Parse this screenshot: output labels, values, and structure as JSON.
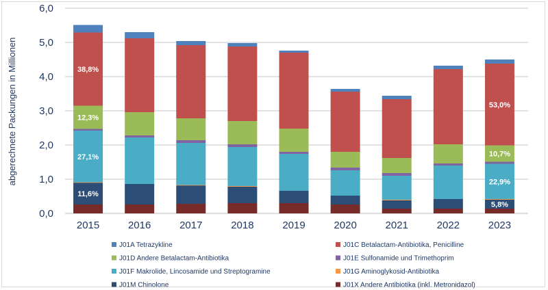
{
  "chart_data": {
    "type": "bar",
    "stacked": true,
    "title": "",
    "xlabel": "",
    "ylabel": "abgerechnete Packungen in Millionen",
    "ylim": [
      0,
      6
    ],
    "yticks": [
      "0,0",
      "1,0",
      "2,0",
      "3,0",
      "4,0",
      "5,0",
      "6,0"
    ],
    "grid": true,
    "legend_position": "bottom",
    "categories": [
      "2015",
      "2016",
      "2017",
      "2018",
      "2019",
      "2020",
      "2021",
      "2022",
      "2023"
    ],
    "series": [
      {
        "name": "J01X Andere Antibiotika (inkl. Metronidazol)",
        "color": "#772C2A",
        "values": [
          0.26,
          0.26,
          0.28,
          0.3,
          0.3,
          0.26,
          0.14,
          0.14,
          0.14
        ]
      },
      {
        "name": "J01M Chinolone",
        "color": "#2C4D75",
        "values": [
          0.64,
          0.6,
          0.54,
          0.48,
          0.36,
          0.26,
          0.24,
          0.28,
          0.26
        ]
      },
      {
        "name": "J01G Aminoglykosid-Antibiotika",
        "color": "#F79646",
        "values": [
          0.01,
          0.0,
          0.01,
          0.02,
          0.0,
          0.0,
          0.02,
          0.0,
          0.02
        ]
      },
      {
        "name": "J01F Makrolide, Lincosamide und Streptogramine",
        "color": "#4BACC6",
        "values": [
          1.51,
          1.36,
          1.23,
          1.14,
          1.08,
          0.74,
          0.7,
          0.98,
          1.03
        ]
      },
      {
        "name": "J01E Sulfonamide und Trimethoprim",
        "color": "#8064A2",
        "values": [
          0.05,
          0.06,
          0.08,
          0.08,
          0.06,
          0.08,
          0.08,
          0.06,
          0.06
        ]
      },
      {
        "name": "J01D Andere Betalactam-Antibiotika",
        "color": "#9BBB59",
        "values": [
          0.68,
          0.68,
          0.64,
          0.68,
          0.68,
          0.46,
          0.44,
          0.56,
          0.48
        ]
      },
      {
        "name": "J01C Betalactam-Antibiotika, Penicilline",
        "color": "#C0504D",
        "values": [
          2.14,
          2.16,
          2.14,
          2.18,
          2.22,
          1.76,
          1.72,
          2.2,
          2.39
        ]
      },
      {
        "name": "J01A Tetrazykline",
        "color": "#4F81BD",
        "values": [
          0.22,
          0.18,
          0.12,
          0.1,
          0.06,
          0.08,
          0.1,
          0.1,
          0.12
        ]
      }
    ],
    "data_labels": [
      {
        "category": "2015",
        "series": "J01C Betalactam-Antibiotika, Penicilline",
        "text": "38,8%"
      },
      {
        "category": "2015",
        "series": "J01D Andere Betalactam-Antibiotika",
        "text": "12,3%"
      },
      {
        "category": "2015",
        "series": "J01F Makrolide, Lincosamide und Streptogramine",
        "text": "27,1%"
      },
      {
        "category": "2015",
        "series": "J01M Chinolone",
        "text": "11,6%"
      },
      {
        "category": "2023",
        "series": "J01C Betalactam-Antibiotika, Penicilline",
        "text": "53,0%"
      },
      {
        "category": "2023",
        "series": "J01D Andere Betalactam-Antibiotika",
        "text": "10,7%"
      },
      {
        "category": "2023",
        "series": "J01F Makrolide, Lincosamide und Streptogramine",
        "text": "22,9%"
      },
      {
        "category": "2023",
        "series": "J01M Chinolone",
        "text": "5,8%"
      }
    ],
    "legend": [
      {
        "label": "J01A Tetrazykline",
        "color": "#4F81BD"
      },
      {
        "label": "J01C Betalactam-Antibiotika, Penicilline",
        "color": "#C0504D"
      },
      {
        "label": "J01D Andere Betalactam-Antibiotika",
        "color": "#9BBB59"
      },
      {
        "label": "J01E Sulfonamide und Trimethoprim",
        "color": "#8064A2"
      },
      {
        "label": "J01F Makrolide, Lincosamide und Streptogramine",
        "color": "#4BACC6"
      },
      {
        "label": "J01G Aminoglykosid-Antibiotika",
        "color": "#F79646"
      },
      {
        "label": "J01M Chinolone",
        "color": "#2C4D75"
      },
      {
        "label": "J01X Andere Antibiotika (inkl. Metronidazol)",
        "color": "#772C2A"
      }
    ]
  }
}
